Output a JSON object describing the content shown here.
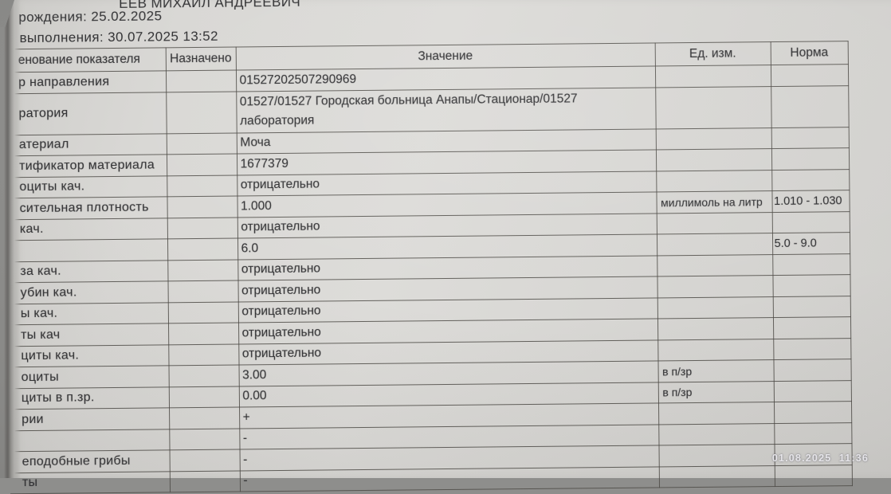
{
  "document": {
    "patient_name_partial": "ЕЕВ МИХАИЛ АНДРЕЕВИЧ",
    "birth_date_line": "рождения: 25.02.2025",
    "performed_line": "выполнения: 30.07.2025 13:52"
  },
  "camera_overlay": {
    "timestamp": "01.08.2025  11:36"
  },
  "table": {
    "columns": {
      "indicator": "енование показателя",
      "assigned": "Назначено",
      "value": "Значение",
      "unit": "Ед. изм.",
      "norm": "Норма"
    },
    "rows": [
      {
        "indicator": "р направления",
        "assigned": "",
        "value": "01527202507290969",
        "unit": "",
        "norm": ""
      },
      {
        "indicator": "ратория",
        "assigned": "",
        "value": "01527/01527 Городская больница Анапы/Стационар/01527 лаборатория",
        "unit": "",
        "norm": "",
        "tall": true
      },
      {
        "indicator": "атериал",
        "assigned": "",
        "value": "Моча",
        "unit": "",
        "norm": ""
      },
      {
        "indicator": "тификатор материала",
        "assigned": "",
        "value": "1677379",
        "unit": "",
        "norm": ""
      },
      {
        "indicator": "оциты кач.",
        "assigned": "",
        "value": "отрицательно",
        "unit": "",
        "norm": ""
      },
      {
        "indicator": "сительная плотность",
        "assigned": "",
        "value": "1.000",
        "unit": "миллимоль на литр",
        "norm": "1.010 - 1.030"
      },
      {
        "indicator": "кач.",
        "assigned": "",
        "value": "отрицательно",
        "unit": "",
        "norm": ""
      },
      {
        "indicator": "",
        "assigned": "",
        "value": "6.0",
        "unit": "",
        "norm": "5.0 - 9.0"
      },
      {
        "indicator": "за кач.",
        "assigned": "",
        "value": "отрицательно",
        "unit": "",
        "norm": ""
      },
      {
        "indicator": "убин кач.",
        "assigned": "",
        "value": "отрицательно",
        "unit": "",
        "norm": ""
      },
      {
        "indicator": "ы кач.",
        "assigned": "",
        "value": "отрицательно",
        "unit": "",
        "norm": ""
      },
      {
        "indicator": "ты кач",
        "assigned": "",
        "value": "отрицательно",
        "unit": "",
        "norm": ""
      },
      {
        "indicator": "циты кач.",
        "assigned": "",
        "value": "отрицательно",
        "unit": "",
        "norm": ""
      },
      {
        "indicator": "оциты",
        "assigned": "",
        "value": "3.00",
        "unit": "в п/зр",
        "norm": ""
      },
      {
        "indicator": "циты в п.зр.",
        "assigned": "",
        "value": "0.00",
        "unit": "в п/зр",
        "norm": ""
      },
      {
        "indicator": "рии",
        "assigned": "",
        "value": "+",
        "unit": "",
        "norm": ""
      },
      {
        "indicator": "",
        "assigned": "",
        "value": "-",
        "unit": "",
        "norm": ""
      },
      {
        "indicator": "еподобные грибы",
        "assigned": "",
        "value": "-",
        "unit": "",
        "norm": ""
      },
      {
        "indicator": "ты",
        "assigned": "",
        "value": "-",
        "unit": "",
        "norm": ""
      }
    ]
  },
  "colors": {
    "paper": "#d8d7d4",
    "background": "#8e8e8c",
    "table_line": "#4e4b46",
    "text": "#323234",
    "timestamp": "#e6e5e9"
  }
}
